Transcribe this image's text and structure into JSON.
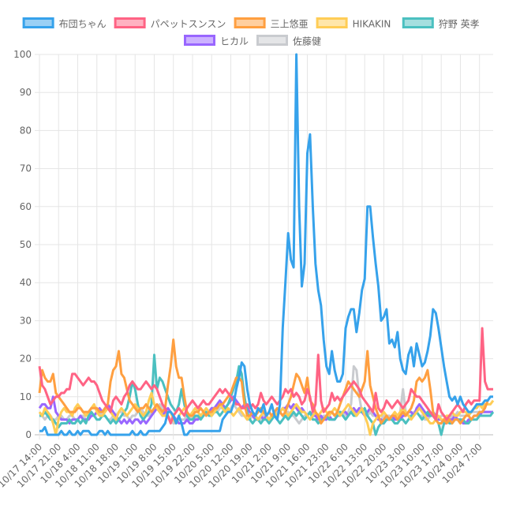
{
  "chart_data": {
    "type": "line",
    "title": "",
    "xlabel": "",
    "ylabel": "",
    "ylim": [
      0,
      100
    ],
    "grid": true,
    "legend_position": "top",
    "y_ticks": [
      "0",
      "10",
      "20",
      "30",
      "40",
      "50",
      "60",
      "70",
      "80",
      "90",
      "100"
    ],
    "x_tick_labels": [
      "10/17 14:00",
      "10/17 21:00",
      "10/18 4:00",
      "10/18 11:00",
      "10/18 18:00",
      "10/19 1:00",
      "10/19 8:00",
      "10/19 15:00",
      "10/19 22:00",
      "10/20 5:00",
      "10/20 12:00",
      "10/20 19:00",
      "10/21 2:00",
      "10/21 9:00",
      "10/21 16:00",
      "10/21 23:00",
      "10/22 6:00",
      "10/22 13:00",
      "10/22 20:00",
      "10/23 3:00",
      "10/23 10:00",
      "10/23 17:00",
      "10/24 0:00",
      "10/24 7:00"
    ],
    "x_tick_step_hours": 7,
    "series": [
      {
        "name": "布団ちゃん",
        "color": "#36a2eb",
        "fill": "#9ad0f5",
        "values": [
          1,
          1,
          2,
          0,
          0,
          0,
          0,
          0,
          1,
          0,
          0,
          1,
          0,
          0,
          1,
          0,
          1,
          1,
          1,
          0,
          0,
          0,
          1,
          1,
          0,
          1,
          0,
          0,
          0,
          0,
          0,
          0,
          0,
          0,
          1,
          0,
          0,
          1,
          0,
          0,
          1,
          1,
          1,
          1,
          1,
          2,
          3,
          6,
          6,
          5,
          3,
          5,
          3,
          0,
          0,
          1,
          1,
          1,
          1,
          1,
          1,
          1,
          1,
          1,
          1,
          1,
          1,
          4,
          5,
          6,
          6,
          8,
          12,
          15,
          19,
          18,
          12,
          8,
          6,
          5,
          7,
          6,
          8,
          5,
          6,
          8,
          5,
          4,
          8,
          28,
          40,
          53,
          46,
          44,
          100,
          60,
          39,
          45,
          74,
          79,
          60,
          45,
          38,
          34,
          25,
          18,
          16,
          22,
          17,
          14,
          14,
          16,
          28,
          31,
          33,
          33,
          27,
          32,
          38,
          41,
          60,
          60,
          52,
          45,
          39,
          30,
          31,
          33,
          24,
          25,
          23,
          27,
          20,
          17,
          16,
          21,
          23,
          18,
          24,
          21,
          18,
          19,
          22,
          26,
          33,
          32,
          28,
          23,
          18,
          14,
          10,
          9,
          10,
          8,
          10,
          8,
          7,
          6,
          6,
          7,
          8,
          8,
          8,
          9,
          9,
          10,
          10
        ]
      },
      {
        "name": "パペットスンスン",
        "color": "#ff6384",
        "fill": "#ffb1c1",
        "values": [
          18,
          13,
          12,
          10,
          8,
          9,
          10,
          10,
          11,
          11,
          12,
          12,
          16,
          16,
          15,
          14,
          13,
          14,
          15,
          14,
          14,
          13,
          11,
          9,
          8,
          7,
          6,
          9,
          10,
          9,
          8,
          10,
          11,
          13,
          14,
          13,
          12,
          12,
          13,
          14,
          13,
          12,
          13,
          12,
          10,
          8,
          7,
          5,
          3,
          5,
          6,
          7,
          6,
          5,
          7,
          8,
          9,
          8,
          7,
          8,
          9,
          8,
          8,
          9,
          10,
          11,
          12,
          11,
          12,
          11,
          10,
          9,
          8,
          8,
          7,
          7,
          8,
          7,
          8,
          7,
          8,
          11,
          9,
          8,
          9,
          10,
          9,
          8,
          9,
          10,
          12,
          11,
          12,
          10,
          11,
          10,
          8,
          9,
          12,
          10,
          6,
          8,
          21,
          9,
          6,
          7,
          8,
          11,
          9,
          10,
          9,
          10,
          11,
          12,
          13,
          14,
          13,
          12,
          10,
          9,
          8,
          7,
          6,
          11,
          7,
          6,
          7,
          9,
          8,
          7,
          8,
          9,
          8,
          7,
          8,
          9,
          12,
          11,
          10,
          10,
          9,
          8,
          7,
          6,
          5,
          4,
          8,
          6,
          5,
          4,
          5,
          6,
          7,
          8,
          7,
          6,
          8,
          9,
          8,
          9,
          9,
          9,
          28,
          14,
          12,
          12,
          12
        ]
      },
      {
        "name": "三上悠亜",
        "color": "#ff9f40",
        "fill": "#ffcf9f",
        "values": [
          11,
          17,
          15,
          14,
          14,
          16,
          11,
          10,
          9,
          8,
          7,
          6,
          6,
          6,
          7,
          7,
          6,
          6,
          6,
          7,
          7,
          7,
          6,
          6,
          7,
          8,
          14,
          17,
          18,
          22,
          16,
          15,
          12,
          9,
          8,
          7,
          6,
          7,
          7,
          8,
          7,
          6,
          7,
          8,
          7,
          6,
          7,
          13,
          18,
          25,
          18,
          15,
          15,
          10,
          6,
          5,
          5,
          6,
          6,
          7,
          6,
          5,
          6,
          6,
          7,
          7,
          8,
          8,
          9,
          10,
          11,
          13,
          15,
          15,
          14,
          8,
          5,
          5,
          6,
          5,
          6,
          7,
          6,
          5,
          6,
          5,
          6,
          7,
          6,
          5,
          6,
          8,
          10,
          13,
          16,
          15,
          13,
          11,
          15,
          9,
          8,
          6,
          5,
          3,
          4,
          5,
          6,
          6,
          5,
          6,
          8,
          10,
          12,
          14,
          13,
          12,
          11,
          10,
          12,
          14,
          22,
          13,
          10,
          7,
          5,
          3,
          4,
          5,
          4,
          5,
          5,
          4,
          5,
          6,
          5,
          6,
          7,
          9,
          14,
          15,
          14,
          15,
          17,
          12,
          6,
          4,
          3,
          3,
          4,
          3,
          4,
          3,
          4,
          4,
          3,
          4,
          5,
          5,
          4,
          5,
          5,
          6,
          6,
          7,
          9
        ]
      },
      {
        "name": "HIKAKIN",
        "color": "#ffcd56",
        "fill": "#ffe6aa",
        "values": [
          6,
          5,
          7,
          6,
          5,
          3,
          0,
          4,
          6,
          7,
          6,
          6,
          5,
          7,
          8,
          7,
          6,
          5,
          6,
          7,
          8,
          6,
          5,
          5,
          6,
          7,
          6,
          5,
          4,
          6,
          7,
          6,
          5,
          6,
          7,
          8,
          7,
          6,
          5,
          6,
          9,
          11,
          8,
          7,
          6,
          5,
          5,
          6,
          6,
          4,
          3,
          5,
          6,
          7,
          6,
          5,
          6,
          7,
          6,
          5,
          6,
          7,
          6,
          5,
          6,
          7,
          8,
          7,
          6,
          7,
          6,
          5,
          6,
          7,
          6,
          5,
          4,
          5,
          6,
          5,
          4,
          5,
          6,
          5,
          4,
          5,
          6,
          5,
          6,
          7,
          6,
          5,
          6,
          7,
          8,
          7,
          6,
          6,
          5,
          4,
          5,
          6,
          5,
          6,
          7,
          6,
          5,
          6,
          7,
          6,
          5,
          6,
          7,
          8,
          7,
          6,
          5,
          6,
          7,
          5,
          3,
          0,
          3,
          4,
          5,
          5,
          6,
          5,
          4,
          5,
          6,
          5,
          6,
          7,
          6,
          5,
          4,
          5,
          6,
          7,
          6,
          5,
          4,
          3,
          3,
          4,
          5,
          4,
          4,
          5,
          5,
          6,
          5,
          5,
          6,
          6,
          6,
          5,
          6,
          7,
          7,
          8,
          7,
          8,
          8,
          8,
          9
        ]
      },
      {
        "name": "狩野 英孝",
        "color": "#4bc0c0",
        "fill": "#a5dfdf",
        "values": [
          5,
          5,
          6,
          5,
          4,
          4,
          3,
          2,
          3,
          3,
          3,
          4,
          3,
          3,
          4,
          3,
          4,
          3,
          5,
          6,
          5,
          4,
          4,
          5,
          5,
          4,
          3,
          4,
          3,
          4,
          5,
          6,
          7,
          10,
          14,
          12,
          8,
          5,
          4,
          5,
          6,
          8,
          21,
          12,
          15,
          14,
          12,
          10,
          8,
          7,
          6,
          8,
          12,
          8,
          5,
          4,
          4,
          5,
          5,
          4,
          5,
          6,
          5,
          5,
          6,
          6,
          5,
          6,
          7,
          8,
          10,
          12,
          14,
          18,
          16,
          10,
          6,
          4,
          3,
          4,
          4,
          3,
          4,
          4,
          3,
          4,
          5,
          4,
          3,
          4,
          5,
          4,
          5,
          6,
          5,
          6,
          5,
          4,
          5,
          6,
          4,
          4,
          3,
          4,
          4,
          5,
          4,
          4,
          4,
          5,
          6,
          5,
          4,
          5,
          6,
          5,
          5,
          6,
          6,
          7,
          5,
          4,
          3,
          0,
          2,
          3,
          3,
          4,
          4,
          4,
          3,
          3,
          4,
          4,
          3,
          4,
          5,
          5,
          6,
          5,
          4,
          5,
          6,
          5,
          5,
          4,
          3,
          0,
          3,
          4,
          3,
          3,
          4,
          4,
          4,
          4,
          3,
          3,
          4,
          4,
          4,
          5,
          5,
          5,
          5,
          5,
          6
        ]
      },
      {
        "name": "ヒカル",
        "color": "#9966ff",
        "fill": "#ccb2ff",
        "values": [
          7,
          8,
          8,
          7,
          7,
          10,
          6,
          5,
          4,
          4,
          4,
          3,
          4,
          4,
          4,
          5,
          4,
          4,
          4,
          5,
          5,
          6,
          7,
          6,
          7,
          8,
          7,
          6,
          5,
          4,
          3,
          4,
          3,
          4,
          3,
          4,
          4,
          3,
          4,
          3,
          4,
          5,
          6,
          7,
          6,
          5,
          6,
          7,
          6,
          5,
          4,
          3,
          3,
          3,
          4,
          3,
          3,
          4,
          4,
          5,
          5,
          6,
          6,
          7,
          7,
          8,
          9,
          8,
          7,
          8,
          9,
          10,
          9,
          8,
          7,
          8,
          7,
          6,
          5,
          4,
          4,
          5,
          4,
          5,
          6,
          5,
          6,
          7,
          6,
          7,
          7,
          8,
          7,
          8,
          7,
          6,
          7,
          6,
          5,
          6,
          5,
          5,
          4,
          5,
          4,
          4,
          5,
          4,
          4,
          5,
          5,
          6,
          6,
          5,
          6,
          7,
          6,
          7,
          6,
          5,
          6,
          7,
          6,
          5,
          4,
          4,
          3,
          4,
          4,
          5,
          4,
          4,
          4,
          5,
          5,
          6,
          6,
          5,
          7,
          8,
          7,
          6,
          5,
          5,
          6,
          5,
          4,
          4,
          3,
          3,
          4,
          4,
          5,
          4,
          4,
          3,
          3,
          4,
          4,
          5,
          5,
          5,
          6,
          6,
          6,
          6,
          6
        ]
      },
      {
        "name": "佐藤健",
        "color": "#c9cbcf",
        "fill": "#e4e5e7",
        "values": [
          5,
          5,
          4,
          5,
          5,
          4,
          4,
          5,
          5,
          4,
          4,
          5,
          5,
          4,
          4,
          5,
          5,
          4,
          4,
          5,
          5,
          6,
          6,
          5,
          5,
          4,
          4,
          5,
          5,
          6,
          6,
          5,
          5,
          4,
          5,
          5,
          6,
          7,
          6,
          5,
          5,
          6,
          6,
          7,
          8,
          7,
          6,
          5,
          4,
          3,
          3,
          4,
          4,
          4,
          5,
          5,
          4,
          4,
          5,
          5,
          5,
          6,
          6,
          5,
          6,
          6,
          7,
          7,
          6,
          6,
          7,
          8,
          7,
          6,
          5,
          5,
          4,
          4,
          5,
          5,
          4,
          4,
          5,
          5,
          4,
          5,
          5,
          6,
          6,
          5,
          6,
          6,
          5,
          5,
          4,
          3,
          4,
          5,
          5,
          4,
          5,
          5,
          4,
          4,
          5,
          5,
          6,
          6,
          5,
          5,
          6,
          6,
          5,
          6,
          8,
          18,
          17,
          10,
          6,
          5,
          5,
          6,
          5,
          5,
          4,
          4,
          5,
          5,
          5,
          4,
          5,
          5,
          6,
          12,
          6,
          5,
          5,
          6,
          6,
          5,
          5,
          4,
          4,
          5,
          5,
          4,
          4,
          5,
          5,
          4,
          4,
          5,
          5,
          6,
          5,
          5,
          5,
          6,
          6,
          6,
          6,
          6,
          6,
          6,
          6,
          6,
          6
        ]
      }
    ]
  }
}
